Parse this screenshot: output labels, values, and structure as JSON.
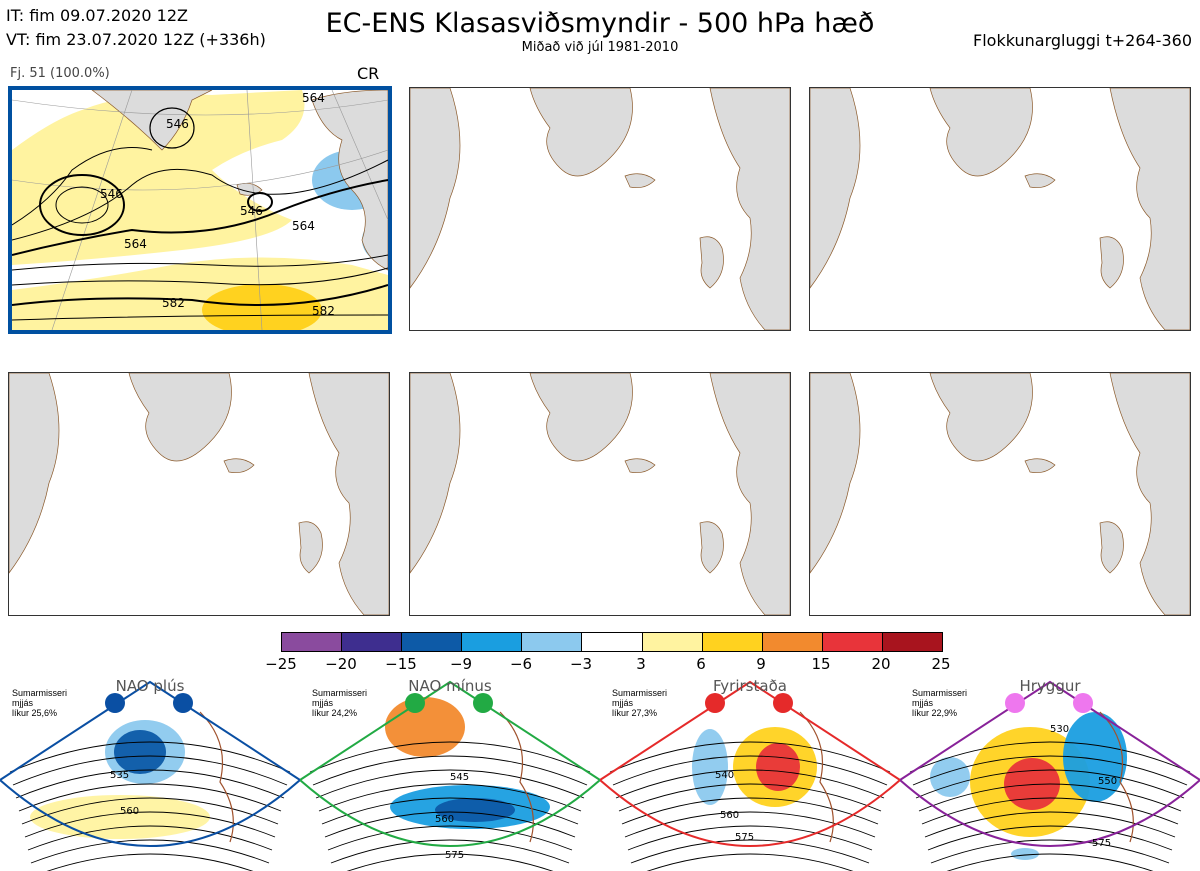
{
  "header": {
    "issue_time": "IT: fim 09.07.2020 12Z",
    "valid_time": "VT: fim 23.07.2020 12Z  (+336h)",
    "title": "EC-ENS Klasasviðsmyndir - 500 hPa hæð",
    "subtitle": "Miðað við júl 1981-2010",
    "window": "Flokkunargluggi t+264-360"
  },
  "cluster": {
    "label": "Fj. 51 (100.0%)",
    "code": "CR"
  },
  "contour_labels": [
    "546",
    "546",
    "546",
    "564",
    "564",
    "582",
    "582",
    "564"
  ],
  "colorbar": {
    "ticks": [
      "−25",
      "−20",
      "−15",
      "−9",
      "−6",
      "−3",
      "3",
      "6",
      "9",
      "15",
      "20",
      "25"
    ],
    "colors": [
      "#8a4b9e",
      "#3e2e8f",
      "#0d5aa7",
      "#1a9ee0",
      "#8cc9ee",
      "#ffffff",
      "#fff3a0",
      "#ffd21f",
      "#f28a2e",
      "#e8343a",
      "#a8141e"
    ]
  },
  "regimes": [
    {
      "name": "NAO plús",
      "desc": [
        "Sumarmisseri",
        "mjjás",
        "líkur 25,6%"
      ],
      "dot_color": "#0a4fa3",
      "frame_color": "#0a4fa3",
      "labels": [
        "535",
        "560"
      ]
    },
    {
      "name": "NAO mínus",
      "desc": [
        "Sumarmisseri",
        "mjjás",
        "líkur 24,2%"
      ],
      "dot_color": "#22aa44",
      "frame_color": "#22aa44",
      "labels": [
        "545",
        "560",
        "575"
      ]
    },
    {
      "name": "Fyrirstaða",
      "desc": [
        "Sumarmisseri",
        "mjjás",
        "líkur 27,3%"
      ],
      "dot_color": "#e52a2a",
      "frame_color": "#e52a2a",
      "labels": [
        "540",
        "560",
        "575"
      ]
    },
    {
      "name": "Hryggur",
      "desc": [
        "Sumarmisseri",
        "mjjás",
        "líkur 22,9%"
      ],
      "dot_color": "#ee77ee",
      "frame_color": "#882299",
      "labels": [
        "530",
        "550",
        "575"
      ]
    }
  ]
}
